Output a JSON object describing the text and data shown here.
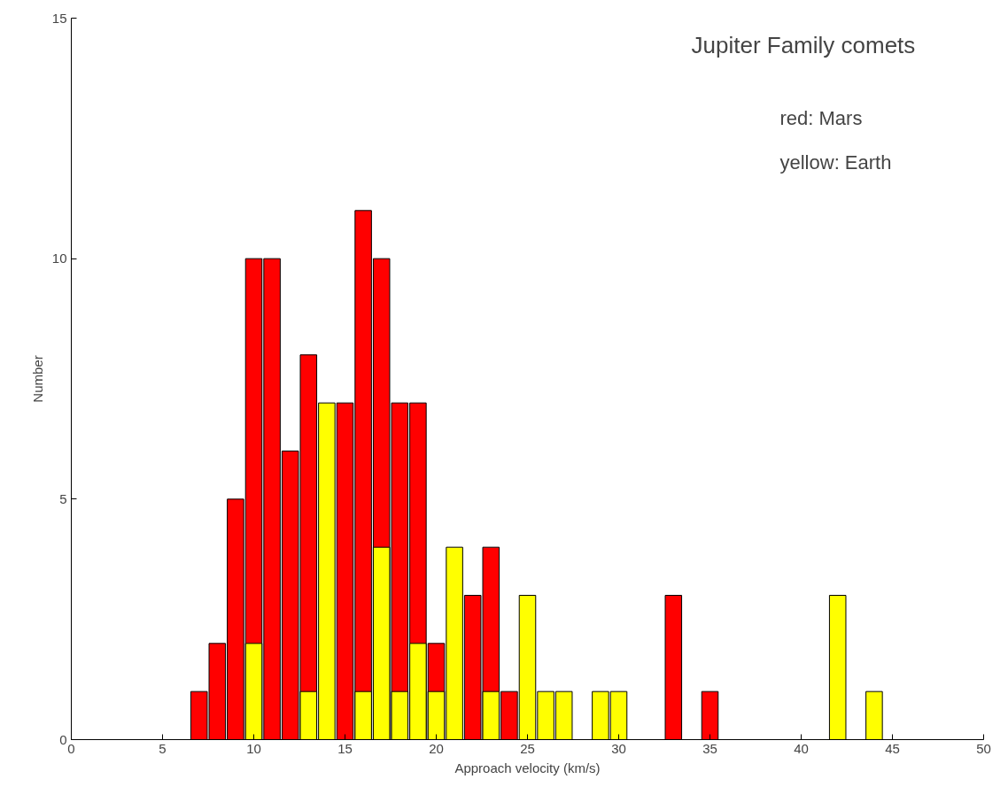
{
  "chart_data": {
    "type": "bar",
    "xlabel": "Approach velocity (km/s)",
    "ylabel": "Number",
    "annotations": [
      "Jupiter Family comets",
      "red: Mars",
      "yellow: Earth"
    ],
    "series": [
      {
        "color": "#ff0000",
        "x": [
          7,
          8,
          9,
          10,
          11,
          12,
          13,
          14,
          15,
          16,
          17,
          18,
          19,
          20,
          22,
          23,
          24,
          33,
          35
        ],
        "values": [
          1,
          2,
          5,
          10,
          10,
          6,
          8,
          null,
          7,
          11,
          10,
          7,
          7,
          2,
          3,
          4,
          1,
          3,
          1
        ]
      },
      {
        "color": "#ffff00",
        "x": [
          10,
          13,
          14,
          16,
          17,
          18,
          19,
          20,
          21,
          23,
          25,
          26,
          27,
          29,
          30,
          42,
          44
        ],
        "values": [
          2,
          1,
          7,
          1,
          4,
          1,
          2,
          1,
          4,
          1,
          3,
          1,
          1,
          1,
          1,
          3,
          1
        ]
      }
    ],
    "xlim": [
      0,
      50
    ],
    "xticks": [
      0,
      5,
      10,
      15,
      20,
      25,
      30,
      35,
      40,
      45,
      50
    ],
    "ylim": [
      0,
      15
    ],
    "yticks": [
      0,
      5,
      10,
      15
    ],
    "grid": false
  }
}
